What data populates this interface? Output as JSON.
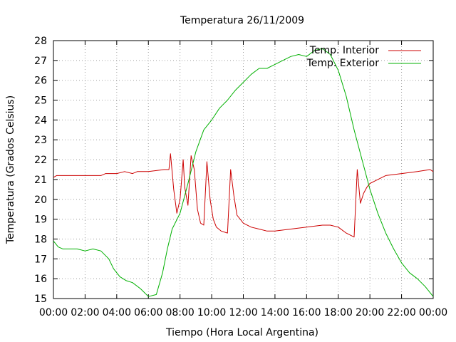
{
  "chart_data": {
    "type": "line",
    "title": "Temperatura 26/11/2009",
    "xlabel": "Tiempo (Hora Local Argentina)",
    "ylabel": "Temperatura (Grados Celsius)",
    "xlim": [
      0,
      24
    ],
    "ylim": [
      15,
      28
    ],
    "x_ticks": [
      "00:00",
      "02:00",
      "04:00",
      "06:00",
      "08:00",
      "10:00",
      "12:00",
      "14:00",
      "16:00",
      "18:00",
      "20:00",
      "22:00",
      "00:00"
    ],
    "y_ticks": [
      "15",
      "16",
      "17",
      "18",
      "19",
      "20",
      "21",
      "22",
      "23",
      "24",
      "25",
      "26",
      "27",
      "28"
    ],
    "grid": true,
    "legend_position": "top-right",
    "series": [
      {
        "name": "Temp. Interior",
        "color": "#cc0000",
        "x": [
          0,
          0.2,
          0.4,
          1,
          2,
          3,
          3.3,
          4,
          4.5,
          5,
          5.3,
          6,
          7,
          7.3,
          7.4,
          7.6,
          7.8,
          8.0,
          8.2,
          8.3,
          8.5,
          8.7,
          8.9,
          9.1,
          9.3,
          9.5,
          9.7,
          9.9,
          10.1,
          10.3,
          10.6,
          11.0,
          11.2,
          11.4,
          11.6,
          12,
          12.5,
          13,
          13.5,
          14,
          15,
          16,
          17,
          17.5,
          18,
          18.5,
          19,
          19.2,
          19.4,
          19.6,
          19.8,
          20,
          20.5,
          21,
          22,
          23,
          23.8,
          24
        ],
        "y": [
          21.1,
          21.2,
          21.2,
          21.2,
          21.2,
          21.2,
          21.3,
          21.3,
          21.4,
          21.3,
          21.4,
          21.4,
          21.5,
          21.5,
          22.3,
          20.5,
          19.3,
          20.0,
          22.0,
          20.6,
          19.7,
          22.2,
          21.5,
          19.5,
          18.8,
          18.7,
          21.9,
          20.0,
          19.0,
          18.6,
          18.4,
          18.3,
          21.5,
          20.2,
          19.2,
          18.8,
          18.6,
          18.5,
          18.4,
          18.4,
          18.5,
          18.6,
          18.7,
          18.7,
          18.6,
          18.3,
          18.1,
          21.5,
          19.8,
          20.3,
          20.6,
          20.8,
          21.0,
          21.2,
          21.3,
          21.4,
          21.5,
          21.4
        ]
      },
      {
        "name": "Temp. Exterior",
        "color": "#00b000",
        "x": [
          0,
          0.3,
          0.6,
          1,
          1.5,
          2,
          2.5,
          3,
          3.5,
          3.8,
          4.2,
          4.6,
          5,
          5.5,
          6,
          6.5,
          6.9,
          7.2,
          7.5,
          8,
          8.5,
          9,
          9.5,
          10,
          10.5,
          11,
          11.5,
          12,
          12.5,
          13,
          13.5,
          14,
          14.5,
          15,
          15.5,
          16,
          16.5,
          17,
          17.5,
          18,
          18.5,
          19,
          19.5,
          20,
          20.5,
          21,
          21.5,
          22,
          22.5,
          23,
          23.5,
          24
        ],
        "y": [
          17.9,
          17.6,
          17.5,
          17.5,
          17.5,
          17.4,
          17.5,
          17.4,
          17.0,
          16.5,
          16.1,
          15.9,
          15.8,
          15.5,
          15.1,
          15.2,
          16.3,
          17.5,
          18.5,
          19.3,
          20.8,
          22.4,
          23.5,
          24.0,
          24.6,
          25.0,
          25.5,
          25.9,
          26.3,
          26.6,
          26.6,
          26.8,
          27.0,
          27.2,
          27.3,
          27.2,
          27.5,
          27.6,
          27.3,
          26.5,
          25.2,
          23.5,
          22.0,
          20.5,
          19.3,
          18.3,
          17.5,
          16.8,
          16.3,
          16.0,
          15.6,
          15.1
        ]
      }
    ]
  }
}
